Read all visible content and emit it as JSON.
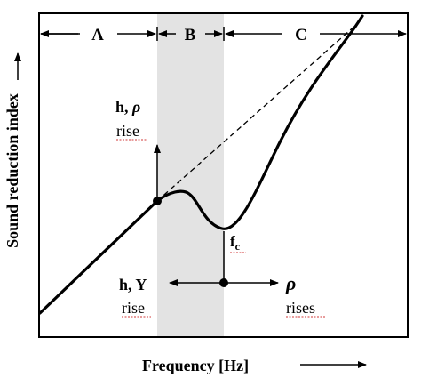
{
  "diagram": {
    "regions": [
      {
        "id": "A",
        "label": "A"
      },
      {
        "id": "B",
        "label": "B"
      },
      {
        "id": "C",
        "label": "C"
      }
    ],
    "y_axis_label": "Sound reduction index",
    "x_axis_label": "Frequency [Hz]",
    "annotations": {
      "upper_left_title_main": "h, ",
      "upper_left_title_rho": "ρ",
      "upper_left_sub": "rise",
      "lower_left_title": "h, Y",
      "lower_left_sub": "rise",
      "lower_right_title": "ρ",
      "lower_right_sub": "rises",
      "coincidence_main": "f",
      "coincidence_sub": "c"
    },
    "colors": {
      "ink": "#000000",
      "shade": "#e3e3e3",
      "spell_underline": "#d23a3a"
    }
  }
}
